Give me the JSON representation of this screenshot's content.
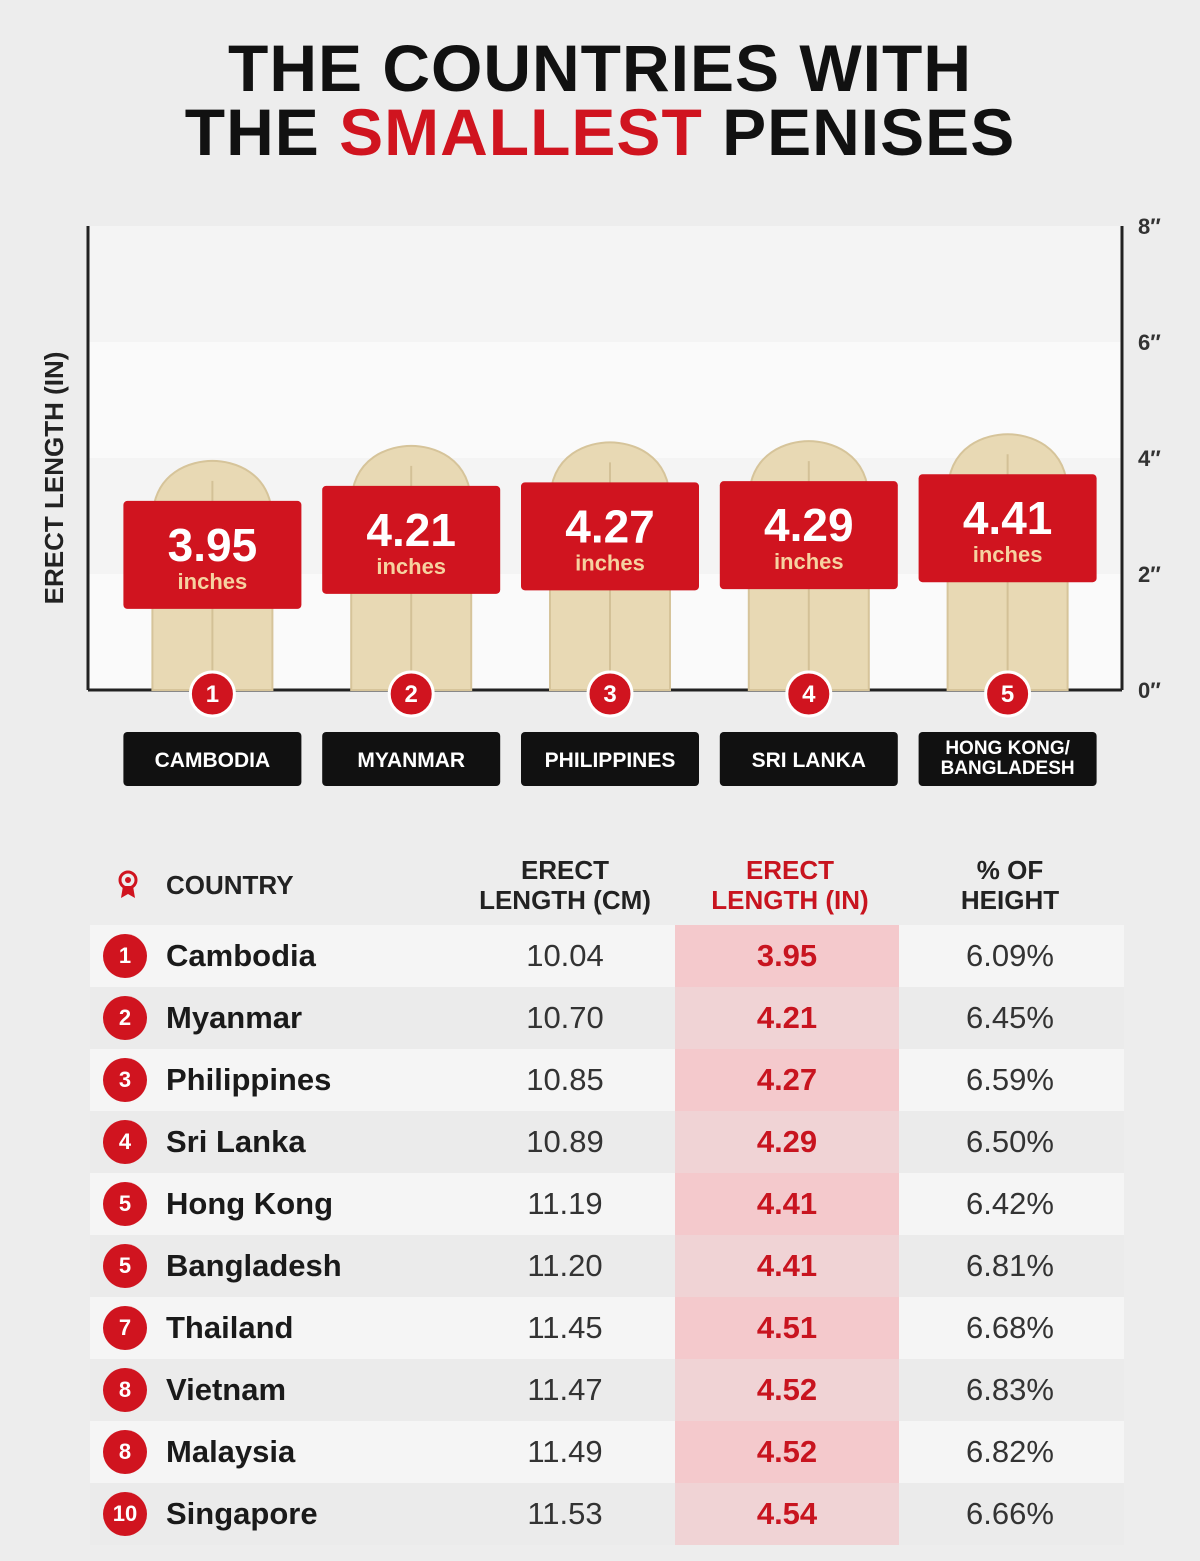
{
  "title": {
    "line1": "THE COUNTRIES WITH",
    "line2_pre": "THE ",
    "line2_accent": "SMALLEST",
    "line2_post": " PENISES"
  },
  "colors": {
    "accent": "#d0141f",
    "dark": "#111111",
    "banana": "#e8d9b4",
    "background": "#ededed"
  },
  "chart_data": {
    "type": "bar",
    "categories": [
      "CAMBODIA",
      "MYANMAR",
      "PHILIPPINES",
      "SRI LANKA",
      "HONG KONG/ BANGLADESH"
    ],
    "values": [
      3.95,
      4.21,
      4.27,
      4.29,
      4.41
    ],
    "value_unit_label": "inches",
    "ranks": [
      "1",
      "2",
      "3",
      "4",
      "5"
    ],
    "ylabel": "ERECT LENGTH (IN)",
    "ylim": [
      0,
      8
    ],
    "yticks": [
      0,
      2,
      4,
      6,
      8
    ],
    "ytick_labels": [
      "0″",
      "2″",
      "4″",
      "6″",
      "8″"
    ],
    "y_axis_side": "right",
    "bar_style": "banana-shaped bars with red value labels"
  },
  "table": {
    "headers": {
      "rank_icon": "medal-icon",
      "country": "COUNTRY",
      "cm_line1": "ERECT",
      "cm_line2": "LENGTH (CM)",
      "in_line1": "ERECT",
      "in_line2": "LENGTH (IN)",
      "pct_line1": "% OF",
      "pct_line2": "HEIGHT"
    },
    "rows": [
      {
        "rank": "1",
        "country": "Cambodia",
        "cm": "10.04",
        "in": "3.95",
        "pct": "6.09%"
      },
      {
        "rank": "2",
        "country": "Myanmar",
        "cm": "10.70",
        "in": "4.21",
        "pct": "6.45%"
      },
      {
        "rank": "3",
        "country": "Philippines",
        "cm": "10.85",
        "in": "4.27",
        "pct": "6.59%"
      },
      {
        "rank": "4",
        "country": "Sri Lanka",
        "cm": "10.89",
        "in": "4.29",
        "pct": "6.50%"
      },
      {
        "rank": "5",
        "country": "Hong Kong",
        "cm": "11.19",
        "in": "4.41",
        "pct": "6.42%"
      },
      {
        "rank": "5",
        "country": "Bangladesh",
        "cm": "11.20",
        "in": "4.41",
        "pct": "6.81%"
      },
      {
        "rank": "7",
        "country": "Thailand",
        "cm": "11.45",
        "in": "4.51",
        "pct": "6.68%"
      },
      {
        "rank": "8",
        "country": "Vietnam",
        "cm": "11.47",
        "in": "4.52",
        "pct": "6.83%"
      },
      {
        "rank": "8",
        "country": "Malaysia",
        "cm": "11.49",
        "in": "4.52",
        "pct": "6.82%"
      },
      {
        "rank": "10",
        "country": "Singapore",
        "cm": "11.53",
        "in": "4.54",
        "pct": "6.66%"
      }
    ]
  }
}
